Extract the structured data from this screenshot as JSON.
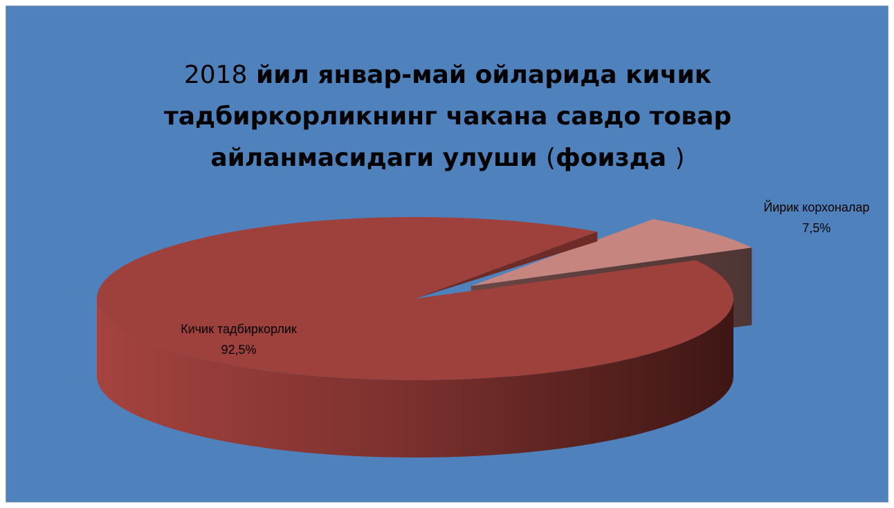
{
  "chart_data": {
    "type": "pie",
    "title_parts": {
      "year": "2018",
      "main_1": "йил январ-май ойларида кичик",
      "main_2": "тадбиркорликнинг чакана савдо товар",
      "main_3": "айланмасидаги улуши",
      "paren_open": "(",
      "paren_word": "фоизда",
      "paren_close": ")"
    },
    "slices": [
      {
        "label": "Кичик тадбиркорлик",
        "value": 92.5,
        "value_text": "92,5%",
        "color": "#9e403c",
        "exploded": false
      },
      {
        "label": "Йирик корхоналар",
        "value": 7.5,
        "value_text": "7,5%",
        "color": "#c6857f",
        "exploded": true
      }
    ],
    "style": "3d-exploded",
    "background": "#4f81bd"
  }
}
